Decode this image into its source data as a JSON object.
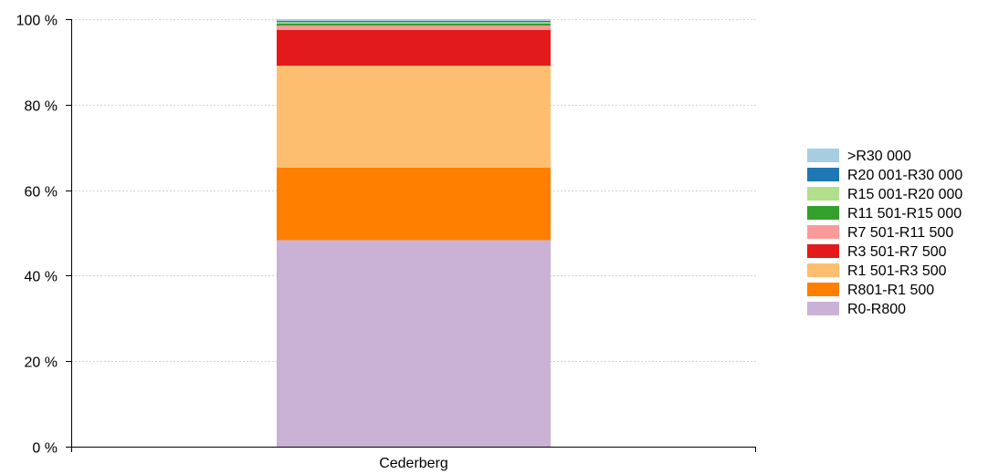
{
  "chart_data": {
    "type": "bar",
    "stacked": true,
    "categories": [
      "Cederberg"
    ],
    "ylim": [
      0,
      100
    ],
    "y_ticks": [
      0,
      20,
      40,
      60,
      80,
      100
    ],
    "y_tick_labels": [
      "0 %",
      "20 %",
      "40 %",
      "60 %",
      "80 %",
      "100 %"
    ],
    "grid": true,
    "legend_position": "right",
    "series": [
      {
        "name": "R0-R800",
        "color": "#cab2d6",
        "values": [
          48.3
        ]
      },
      {
        "name": "R801-R1 500",
        "color": "#ff7f00",
        "values": [
          17.0
        ]
      },
      {
        "name": "R1 501-R3 500",
        "color": "#fdbf6f",
        "values": [
          23.8
        ]
      },
      {
        "name": "R3 501-R7 500",
        "color": "#e31a1c",
        "values": [
          8.4
        ]
      },
      {
        "name": "R7 501-R11 500",
        "color": "#fb9a99",
        "values": [
          1.0
        ]
      },
      {
        "name": "R11 501-R15 000",
        "color": "#33a02c",
        "values": [
          0.5
        ]
      },
      {
        "name": "R15 001-R20 000",
        "color": "#b2df8a",
        "values": [
          0.3
        ]
      },
      {
        "name": "R20 001-R30 000",
        "color": "#1f78b4",
        "values": [
          0.3
        ]
      },
      {
        "name": ">R30 000",
        "color": "#a6cee3",
        "values": [
          0.4
        ]
      }
    ]
  }
}
